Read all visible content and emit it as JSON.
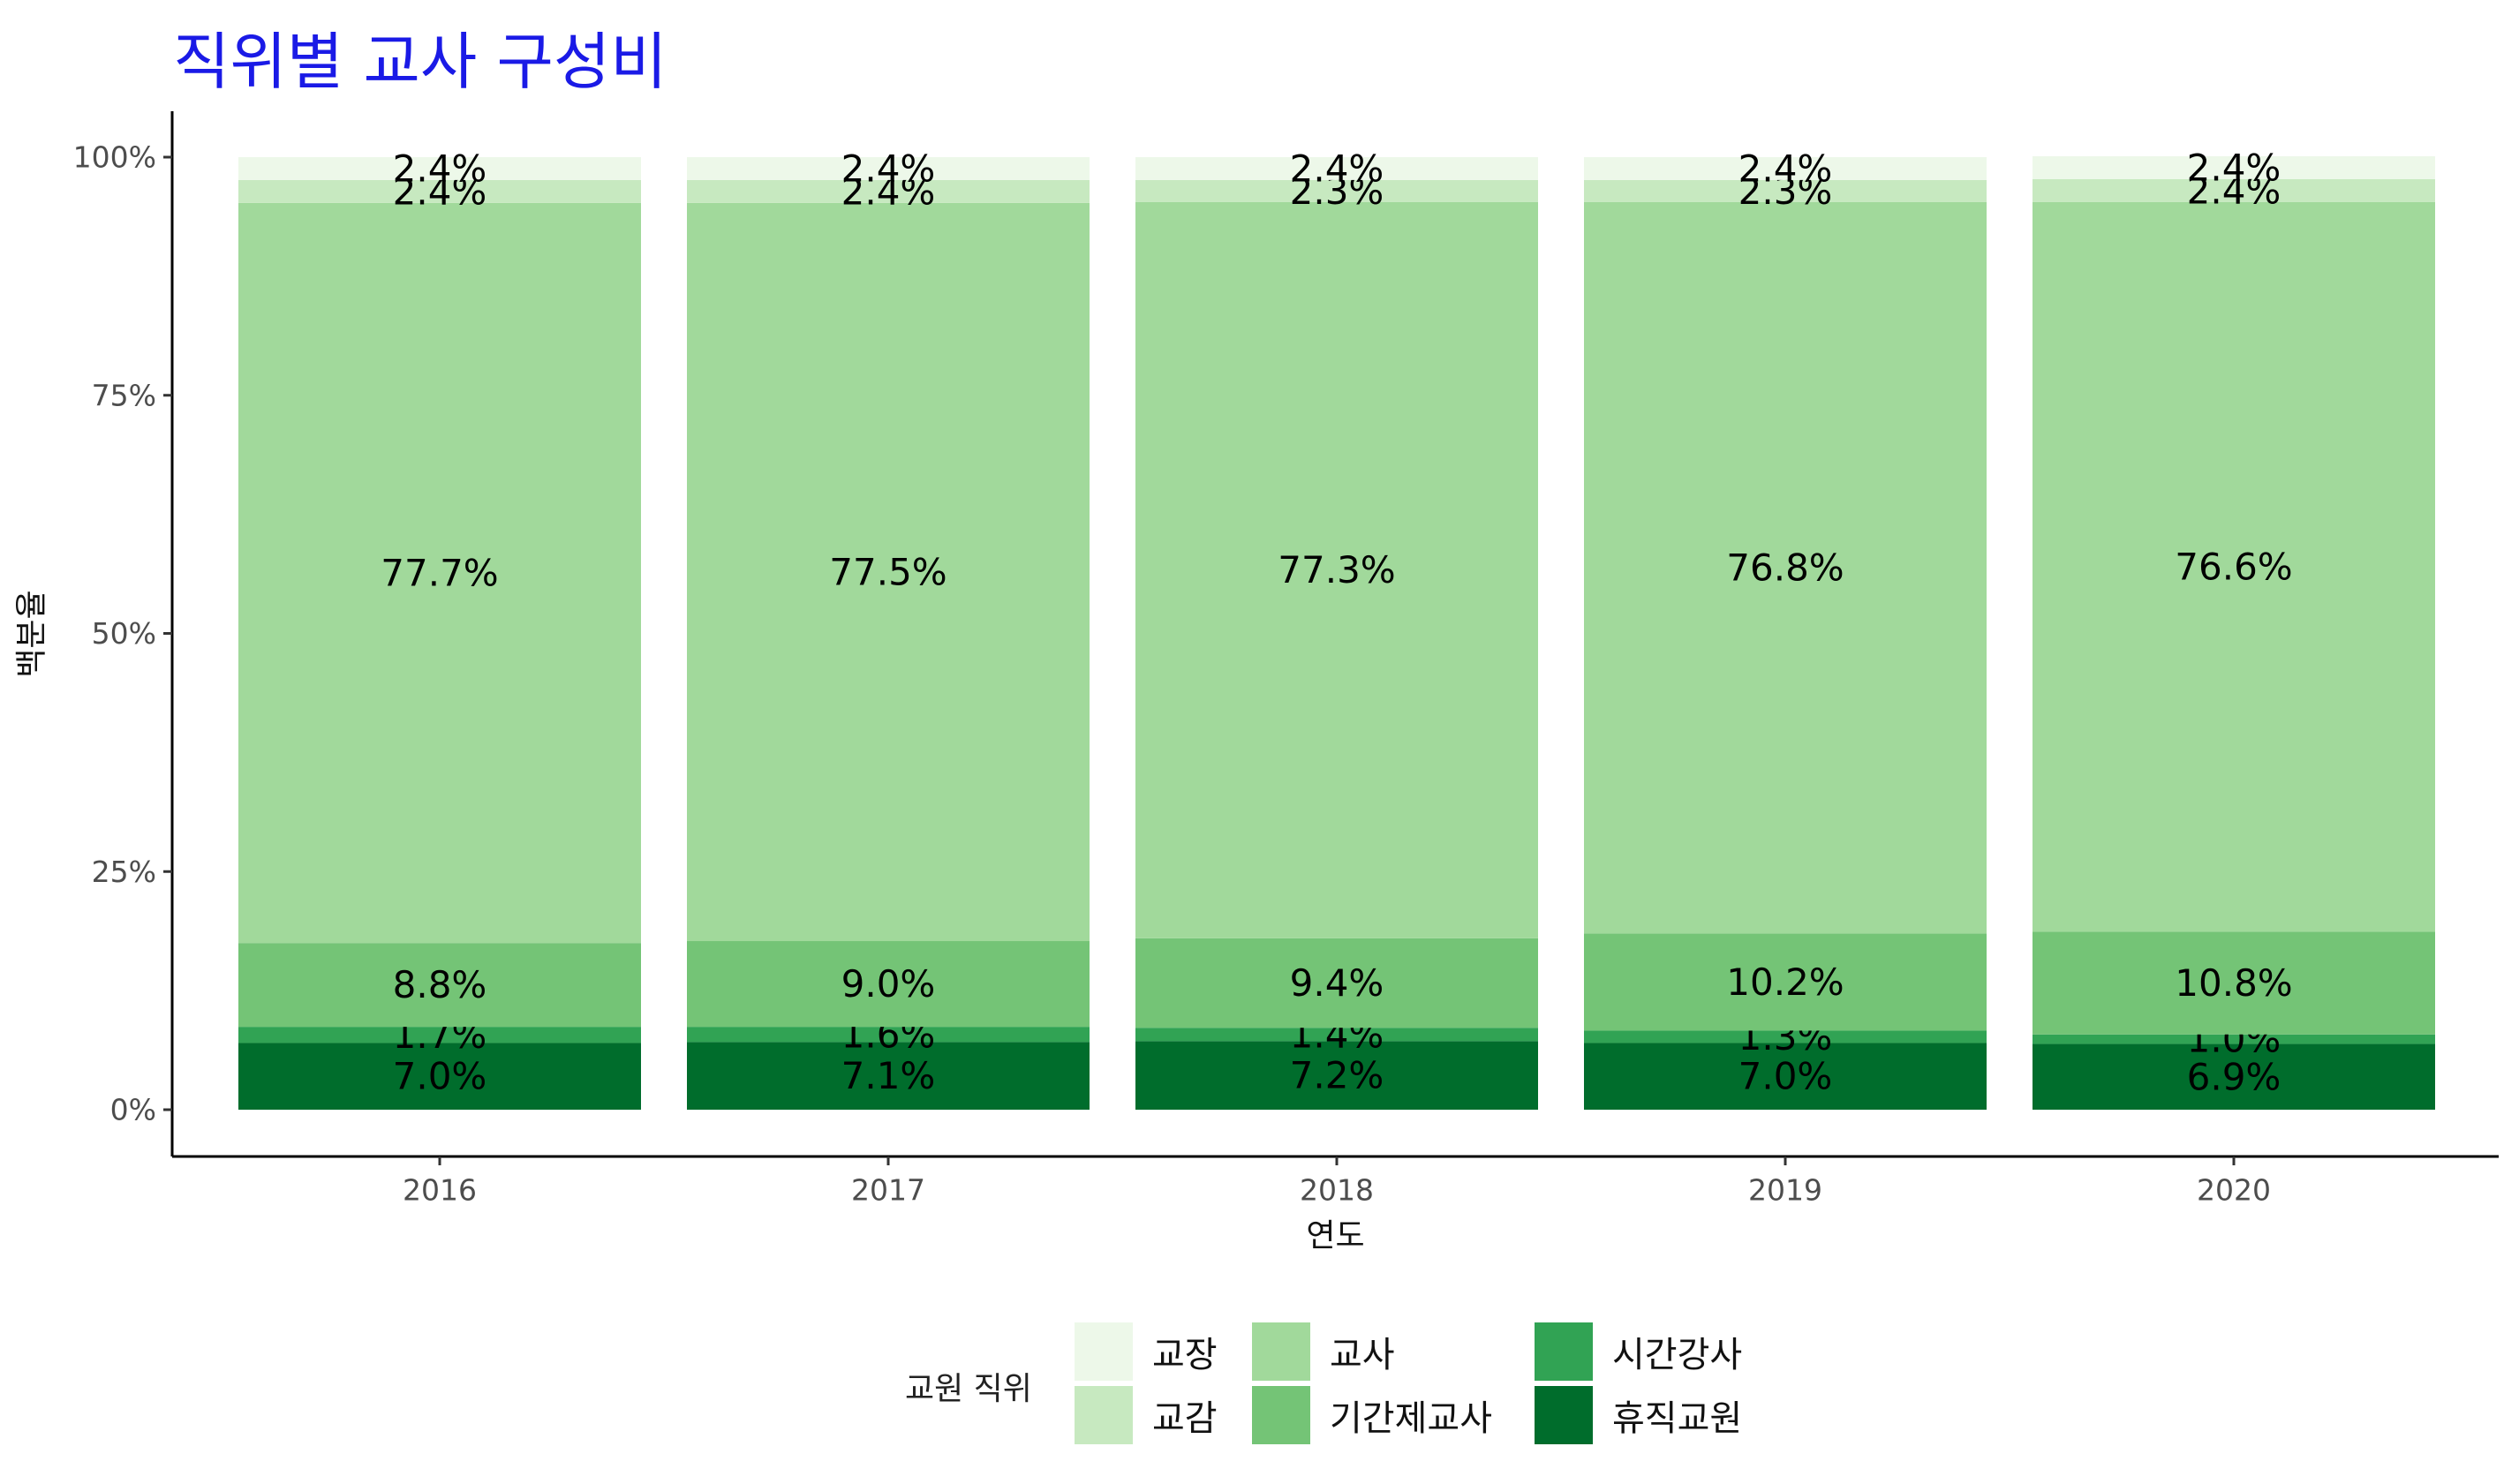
{
  "title": "직위별 교사 구성비",
  "colors": {
    "title": "#1a1ae6",
    "교장": "#EDF8E9",
    "교감": "#C7E9C0",
    "교사": "#A1D99B",
    "기간제교사": "#74C476",
    "시간강사": "#31A354",
    "휴직교원": "#006D2C"
  },
  "legend": {
    "title": "교원 직위",
    "items": [
      {
        "label": "교장",
        "color": "#EDF8E9"
      },
      {
        "label": "교감",
        "color": "#C7E9C0"
      },
      {
        "label": "교사",
        "color": "#A1D99B"
      },
      {
        "label": "기간제교사",
        "color": "#74C476"
      },
      {
        "label": "시간강사",
        "color": "#31A354"
      },
      {
        "label": "휴직교원",
        "color": "#006D2C"
      }
    ]
  },
  "chart_data": {
    "type": "bar",
    "stacked": true,
    "categories": [
      "2016",
      "2017",
      "2018",
      "2019",
      "2020"
    ],
    "xlabel": "연도",
    "ylabel": "백분율",
    "ylim": [
      0,
      1
    ],
    "yticks": [
      "0%",
      "25%",
      "50%",
      "75%",
      "100%"
    ],
    "legend_position": "bottom",
    "grid": false,
    "series": [
      {
        "name": "휴직교원",
        "values": [
          0.07,
          0.071,
          0.072,
          0.07,
          0.069
        ],
        "labels": [
          "7.0%",
          "7.1%",
          "7.2%",
          "7.0%",
          "6.9%"
        ]
      },
      {
        "name": "시간강사",
        "values": [
          0.017,
          0.016,
          0.014,
          0.013,
          0.01
        ],
        "labels": [
          "1.7%",
          "1.6%",
          "1.4%",
          "1.3%",
          "1.0%"
        ]
      },
      {
        "name": "기간제교사",
        "values": [
          0.088,
          0.09,
          0.094,
          0.102,
          0.108
        ],
        "labels": [
          "8.8%",
          "9.0%",
          "9.4%",
          "10.2%",
          "10.8%"
        ]
      },
      {
        "name": "교사",
        "values": [
          0.777,
          0.775,
          0.773,
          0.768,
          0.766
        ],
        "labels": [
          "77.7%",
          "77.5%",
          "77.3%",
          "76.8%",
          "76.6%"
        ]
      },
      {
        "name": "교감",
        "values": [
          0.024,
          0.024,
          0.023,
          0.023,
          0.024
        ],
        "labels": [
          "2.4%",
          "2.4%",
          "2.3%",
          "2.3%",
          "2.4%"
        ]
      },
      {
        "name": "교장",
        "values": [
          0.024,
          0.024,
          0.024,
          0.024,
          0.024
        ],
        "labels": [
          "2.4%",
          "2.4%",
          "2.4%",
          "2.4%",
          "2.4%"
        ]
      }
    ]
  }
}
